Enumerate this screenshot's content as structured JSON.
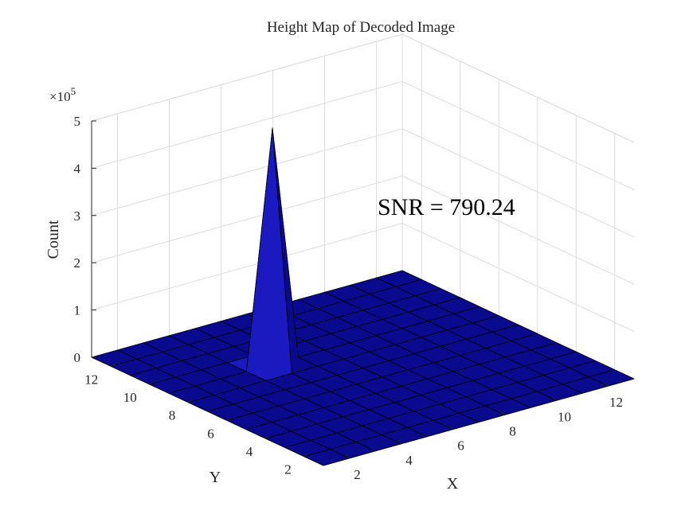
{
  "chart_data": {
    "type": "surface",
    "title": "Height Map of Decoded Image",
    "xlabel": "X",
    "ylabel": "Y",
    "zlabel": "Count",
    "z_multiplier_label": "×10",
    "z_multiplier_exponent": "5",
    "annotation": "SNR = 790.24",
    "x_ticks": [
      "2",
      "4",
      "6",
      "8",
      "10",
      "12"
    ],
    "y_ticks": [
      "2",
      "4",
      "6",
      "8",
      "10",
      "12"
    ],
    "z_ticks": [
      "0",
      "1",
      "2",
      "3",
      "4",
      "5"
    ],
    "x_range": [
      1,
      13
    ],
    "y_range": [
      1,
      13
    ],
    "zlim": [
      0,
      500000
    ],
    "grid": true,
    "surface_color": "#0A0A8E",
    "surface_highlight_color": "#1A1AC0",
    "peak": {
      "x": 5,
      "y": 9,
      "z": 500000
    },
    "baseline_z": 0
  }
}
